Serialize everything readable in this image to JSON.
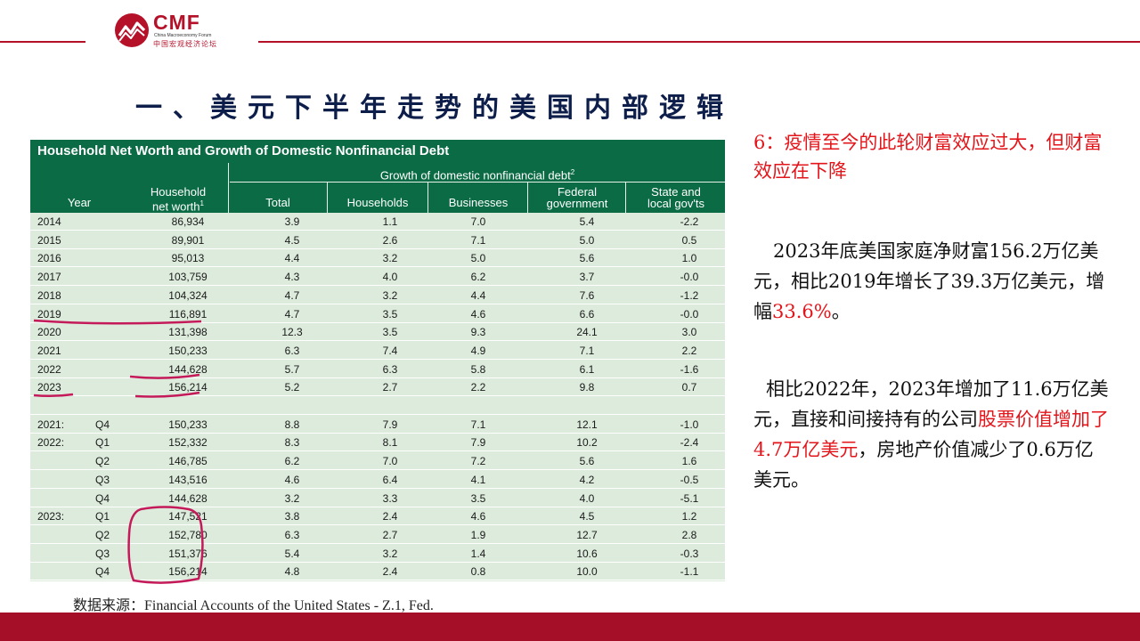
{
  "brand": {
    "name": "CMF",
    "subtitle": "China Macroeconomy Forum",
    "cn": "中国宏观经济论坛",
    "color": "#b5122a"
  },
  "title": "一、美元下半年走势的美国内部逻辑",
  "table": {
    "title": "Household Net Worth and Growth of Domestic Nonfinancial Debt",
    "group_header": "Growth of domestic nonfinancial debt",
    "group_sup": "2",
    "col_year": "Year",
    "col_networth_1": "Household",
    "col_networth_2": "net worth",
    "col_networth_sup": "1",
    "col_total": "Total",
    "col_households": "Households",
    "col_businesses": "Businesses",
    "col_federal_1": "Federal",
    "col_federal_2": "government",
    "col_state_1": "State and",
    "col_state_2": "local gov'ts",
    "rows": [
      {
        "year": "2014",
        "q": "",
        "nw": "86,934",
        "t": "3.9",
        "h": "1.1",
        "b": "7.0",
        "f": "5.4",
        "s": "-2.2"
      },
      {
        "year": "2015",
        "q": "",
        "nw": "89,901",
        "t": "4.5",
        "h": "2.6",
        "b": "7.1",
        "f": "5.0",
        "s": "0.5"
      },
      {
        "year": "2016",
        "q": "",
        "nw": "95,013",
        "t": "4.4",
        "h": "3.2",
        "b": "5.0",
        "f": "5.6",
        "s": "1.0"
      },
      {
        "year": "2017",
        "q": "",
        "nw": "103,759",
        "t": "4.3",
        "h": "4.0",
        "b": "6.2",
        "f": "3.7",
        "s": "-0.0"
      },
      {
        "year": "2018",
        "q": "",
        "nw": "104,324",
        "t": "4.7",
        "h": "3.2",
        "b": "4.4",
        "f": "7.6",
        "s": "-1.2"
      },
      {
        "year": "2019",
        "q": "",
        "nw": "116,891",
        "t": "4.7",
        "h": "3.5",
        "b": "4.6",
        "f": "6.6",
        "s": "-0.0"
      },
      {
        "year": "2020",
        "q": "",
        "nw": "131,398",
        "t": "12.3",
        "h": "3.5",
        "b": "9.3",
        "f": "24.1",
        "s": "3.0"
      },
      {
        "year": "2021",
        "q": "",
        "nw": "150,233",
        "t": "6.3",
        "h": "7.4",
        "b": "4.9",
        "f": "7.1",
        "s": "2.2"
      },
      {
        "year": "2022",
        "q": "",
        "nw": "144,628",
        "t": "5.7",
        "h": "6.3",
        "b": "5.8",
        "f": "6.1",
        "s": "-1.6"
      },
      {
        "year": "2023",
        "q": "",
        "nw": "156,214",
        "t": "5.2",
        "h": "2.7",
        "b": "2.2",
        "f": "9.8",
        "s": "0.7"
      },
      {
        "year": "",
        "q": "",
        "nw": "",
        "t": "",
        "h": "",
        "b": "",
        "f": "",
        "s": ""
      },
      {
        "year": "2021:",
        "q": "Q4",
        "nw": "150,233",
        "t": "8.8",
        "h": "7.9",
        "b": "7.1",
        "f": "12.1",
        "s": "-1.0"
      },
      {
        "year": "2022:",
        "q": "Q1",
        "nw": "152,332",
        "t": "8.3",
        "h": "8.1",
        "b": "7.9",
        "f": "10.2",
        "s": "-2.4"
      },
      {
        "year": "",
        "q": "Q2",
        "nw": "146,785",
        "t": "6.2",
        "h": "7.0",
        "b": "7.2",
        "f": "5.6",
        "s": "1.6"
      },
      {
        "year": "",
        "q": "Q3",
        "nw": "143,516",
        "t": "4.6",
        "h": "6.4",
        "b": "4.1",
        "f": "4.2",
        "s": "-0.5"
      },
      {
        "year": "",
        "q": "Q4",
        "nw": "144,628",
        "t": "3.2",
        "h": "3.3",
        "b": "3.5",
        "f": "4.0",
        "s": "-5.1"
      },
      {
        "year": "2023:",
        "q": "Q1",
        "nw": "147,521",
        "t": "3.8",
        "h": "2.4",
        "b": "4.6",
        "f": "4.5",
        "s": "1.2"
      },
      {
        "year": "",
        "q": "Q2",
        "nw": "152,780",
        "t": "6.3",
        "h": "2.7",
        "b": "1.9",
        "f": "12.7",
        "s": "2.8"
      },
      {
        "year": "",
        "q": "Q3",
        "nw": "151,376",
        "t": "5.4",
        "h": "3.2",
        "b": "1.4",
        "f": "10.6",
        "s": "-0.3"
      },
      {
        "year": "",
        "q": "Q4",
        "nw": "156,214",
        "t": "4.8",
        "h": "2.4",
        "b": "0.8",
        "f": "10.0",
        "s": "-1.1"
      }
    ]
  },
  "note": "6：疫情至今的此轮财富效应过大，但财富效应在下降",
  "para1": {
    "a": "2023年底美国家庭净财富156.2万亿美元，相比2019年增长了39.3万亿美元，增幅",
    "b": "33.6%",
    "c": "。"
  },
  "para2": {
    "a": "相比2022年，2023年增加了11.6万亿美元，直接和间接持有的公司",
    "b": "股票价值增加了4.7万亿美元",
    "c": "，房地产价值减少了0.6万亿美元。"
  },
  "source": "数据来源：Financial Accounts of the United States - Z.1, Fed.",
  "colors": {
    "header_green": "#0a6b45",
    "row_bg": "#dcebdb",
    "accent_red": "#e3151a",
    "bar_red": "#a50f27",
    "title_navy": "#0e1e4a",
    "annotation": "#c41a5a"
  }
}
